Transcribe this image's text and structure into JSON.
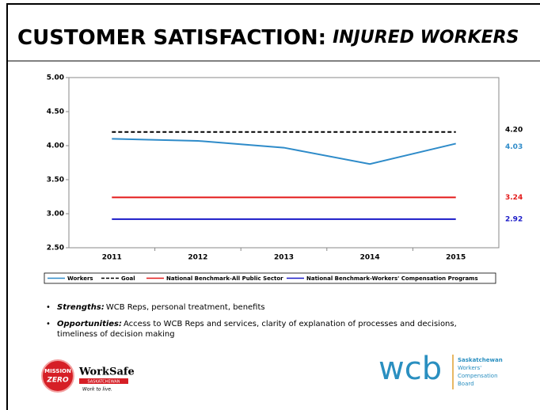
{
  "header": {
    "title": "CUSTOMER SATISFACTION:",
    "title_italic": "INJURED WORKERS"
  },
  "chart_data": {
    "type": "line",
    "categories": [
      "2011",
      "2012",
      "2013",
      "2014",
      "2015"
    ],
    "series": [
      {
        "name": "Workers",
        "color": "#2e8bc9",
        "values": [
          4.1,
          4.07,
          3.97,
          3.73,
          4.03
        ],
        "value_labels": [
          null,
          null,
          null,
          null,
          "4.03"
        ]
      },
      {
        "name": "Goal",
        "color": "#000000",
        "dash": true,
        "values": [
          4.2,
          4.2,
          4.2,
          4.2,
          4.2
        ],
        "value_labels": [
          null,
          null,
          null,
          null,
          "4.20"
        ]
      },
      {
        "name": "National Benchmark-All Public Sector",
        "color": "#e31a1a",
        "values": [
          3.24,
          3.24,
          3.24,
          3.24,
          3.24
        ],
        "value_labels": [
          null,
          null,
          null,
          null,
          "3.24"
        ]
      },
      {
        "name": "National Benchmark-Workers' Compensation Programs",
        "color": "#1a1ac8",
        "values": [
          2.92,
          2.92,
          2.92,
          2.92,
          2.92
        ],
        "value_labels": [
          null,
          null,
          null,
          null,
          "2.92"
        ]
      }
    ],
    "ylim": [
      2.5,
      5.0
    ],
    "yticks": [
      {
        "value": 2.5,
        "label": "2.50"
      },
      {
        "value": 3.0,
        "label": "3.00"
      },
      {
        "value": 3.5,
        "label": "3.50"
      },
      {
        "value": 4.0,
        "label": "4.00"
      },
      {
        "value": 4.5,
        "label": "4.50"
      },
      {
        "value": 5.0,
        "label": "5.00"
      }
    ],
    "grid": false,
    "legend": "bottom"
  },
  "bullets": [
    {
      "label": "Strengths:",
      "text": "WCB Reps, personal treatment, benefits"
    },
    {
      "label": "Opportunities:",
      "text_lines": [
        "Access to WCB Reps and services, clarity of explanation of processes and decisions,",
        "timeliness of decision making"
      ]
    }
  ],
  "logos": {
    "mission": "MISSION",
    "zero": "ZERO",
    "worksafe": "WorkSafe",
    "sask": "SASKATCHEWAN",
    "tagline": "Work to live.",
    "wcb": "wcb",
    "wcb_lines": [
      "Saskatchewan",
      "Workers'",
      "Compensation",
      "Board"
    ]
  }
}
